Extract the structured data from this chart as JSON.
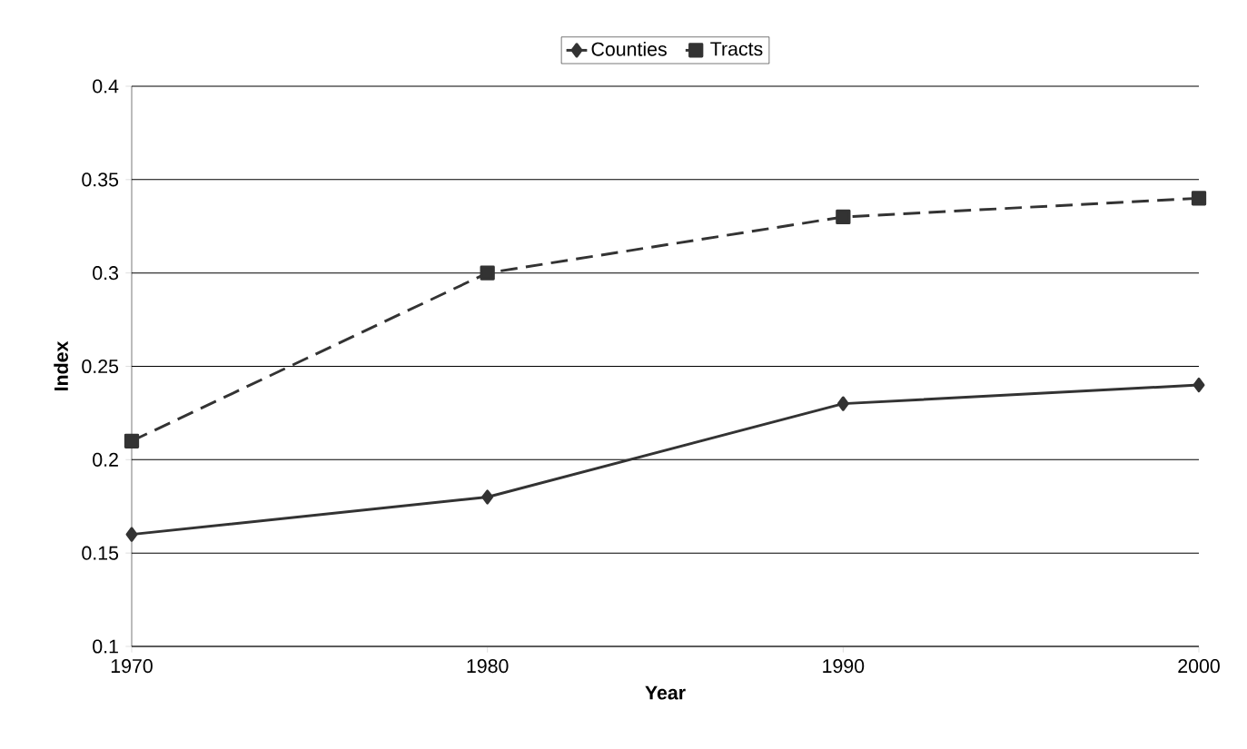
{
  "chart_data": {
    "type": "line",
    "xlabel": "Year",
    "ylabel": "Index",
    "x": [
      1970,
      1980,
      1990,
      2000
    ],
    "series": [
      {
        "name": "Counties",
        "color": "#333333",
        "values": [
          0.16,
          0.18,
          0.23,
          0.24
        ],
        "marker": "diamond",
        "line_style": "solid"
      },
      {
        "name": "Tracts",
        "color": "#333333",
        "values": [
          0.21,
          0.3,
          0.33,
          0.34
        ],
        "marker": "square",
        "line_style": "dashed"
      }
    ],
    "xlim": [
      1970,
      2000
    ],
    "xticks": [
      1970,
      1980,
      1990,
      2000
    ],
    "ylim": [
      0.1,
      0.4
    ],
    "yticks": [
      0.1,
      0.15,
      0.2,
      0.25,
      0.3,
      0.35,
      0.4
    ],
    "grid": "y",
    "legend": "top"
  }
}
